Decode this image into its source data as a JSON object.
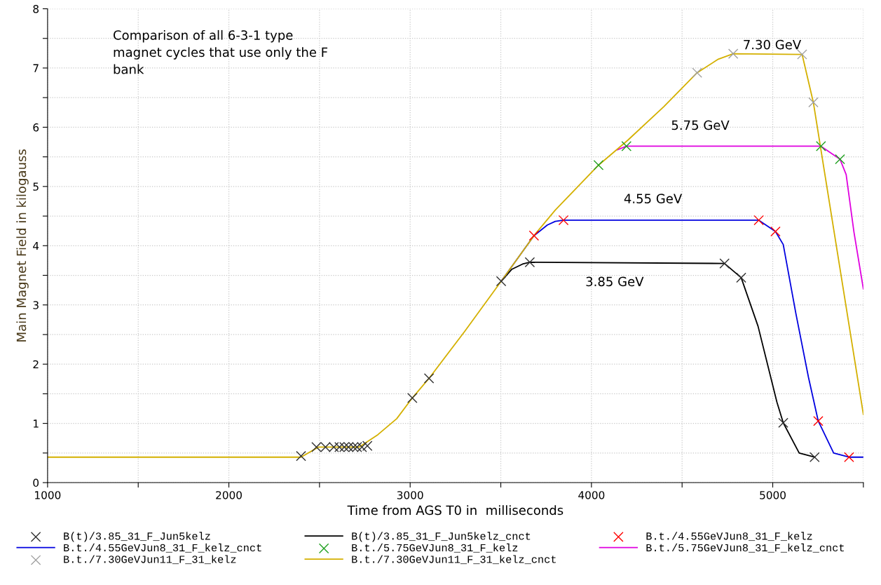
{
  "chart_data": {
    "type": "line",
    "xlabel": "Time from AGS T0 in  milliseconds",
    "ylabel": "Main Magnet Field in kilogauss",
    "xlim": [
      1000,
      5500
    ],
    "ylim": [
      0,
      8
    ],
    "xticks": [
      1000,
      {
        "value": 1500,
        "label": null
      },
      2000,
      {
        "value": 2500,
        "label": null
      },
      3000,
      {
        "value": 3500,
        "label": null
      },
      4000,
      {
        "value": 4500,
        "label": null
      },
      5000,
      {
        "value": 5500,
        "label": null
      }
    ],
    "yticks": [
      0,
      {
        "value": 0.5,
        "label": null
      },
      1,
      {
        "value": 1.5,
        "label": null
      },
      2,
      {
        "value": 2.5,
        "label": null
      },
      3,
      {
        "value": 3.5,
        "label": null
      },
      4,
      {
        "value": 4.5,
        "label": null
      },
      5,
      {
        "value": 5.5,
        "label": null
      },
      6,
      {
        "value": 6.5,
        "label": null
      },
      7,
      {
        "value": 7.5,
        "label": null
      },
      8
    ],
    "grid": true,
    "legend": "bottom",
    "line_style": "solid",
    "annotations": [
      "Comparison of all 6-3-1 type magnet cycles that use only the F bank",
      "7.30 GeV",
      "5.75 GeV",
      "4.55 GeV",
      "3.85 GeV"
    ],
    "series": [
      {
        "name": "B(t)/3.85_31_F_Jun5kelz",
        "type": "scatter",
        "marker": "cross",
        "color": "#303030",
        "x": [
          2398,
          2483,
          2533,
          2579,
          2610,
          2637,
          2660,
          2687,
          2707,
          2734,
          2764,
          3012,
          3104,
          3502,
          3660,
          4734,
          4826,
          5058,
          5231
        ],
        "values": [
          0.45,
          0.6,
          0.6,
          0.6,
          0.6,
          0.6,
          0.6,
          0.6,
          0.6,
          0.6,
          0.62,
          1.43,
          1.76,
          3.4,
          3.72,
          3.7,
          3.46,
          1.01,
          0.43
        ]
      },
      {
        "name": "B(t)/3.85_31_F_Jun5kelz_cnct",
        "marker": "none",
        "color": "#000000",
        "x": [
          3502,
          3560,
          3620,
          3660,
          4734,
          4826,
          4919,
          5023,
          5058,
          5146,
          5231
        ],
        "values": [
          3.4,
          3.6,
          3.69,
          3.72,
          3.7,
          3.46,
          2.64,
          1.36,
          1.01,
          0.5,
          0.43
        ]
      },
      {
        "name": "B.t./4.55GeVJun8_31_F_kelz",
        "type": "scatter",
        "marker": "cross",
        "color": "#ff0000",
        "x": [
          3683,
          3846,
          4923,
          5015,
          5251,
          5421
        ],
        "values": [
          4.17,
          4.43,
          4.43,
          4.24,
          1.04,
          0.43
        ]
      },
      {
        "name": "B.t./4.55GeVJun8_31_F_kelz_cnct",
        "marker": "none",
        "color": "#0000e0",
        "x": [
          3502,
          3683,
          3757,
          3800,
          3846,
          4923,
          5015,
          5058,
          5128,
          5197,
          5251,
          5336,
          5421,
          5500
        ],
        "values": [
          3.4,
          4.17,
          4.35,
          4.41,
          4.43,
          4.43,
          4.24,
          4.02,
          2.85,
          1.78,
          1.04,
          0.5,
          0.43,
          0.43
        ]
      },
      {
        "name": "B.t./5.75GeVJun8_31_F_kelz",
        "type": "scatter",
        "marker": "cross",
        "color": "#20a020",
        "x": [
          4039,
          4193,
          5266,
          5371
        ],
        "values": [
          5.36,
          5.68,
          5.68,
          5.46
        ]
      },
      {
        "name": "B.t./5.75GeVJun8_31_F_kelz_cnct",
        "marker": "none",
        "color": "#e000e0",
        "x": [
          4143,
          4193,
          5266,
          5371,
          5405,
          5448,
          5500
        ],
        "values": [
          5.62,
          5.68,
          5.68,
          5.46,
          5.2,
          4.23,
          3.27
        ]
      },
      {
        "name": "B.t./7.30GeVJun11_F_31_kelz",
        "type": "scatter",
        "marker": "cross",
        "color": "#a0a0a0",
        "x": [
          4583,
          4782,
          5162,
          5224
        ],
        "values": [
          6.92,
          7.24,
          7.23,
          6.42
        ]
      },
      {
        "name": "B.t./7.30GeVJun11_F_31_kelz_cnct",
        "marker": "none",
        "color": "#d4b000",
        "x": [
          1000,
          2398,
          2494,
          2718,
          2822,
          2926,
          3012,
          3104,
          3300,
          3502,
          3683,
          3800,
          4039,
          4200,
          4400,
          4583,
          4700,
          4782,
          5162,
          5224,
          5500
        ],
        "values": [
          0.43,
          0.43,
          0.6,
          0.6,
          0.81,
          1.08,
          1.43,
          1.76,
          2.55,
          3.4,
          4.17,
          4.6,
          5.36,
          5.78,
          6.35,
          6.92,
          7.15,
          7.24,
          7.23,
          6.42,
          1.15
        ]
      }
    ]
  }
}
